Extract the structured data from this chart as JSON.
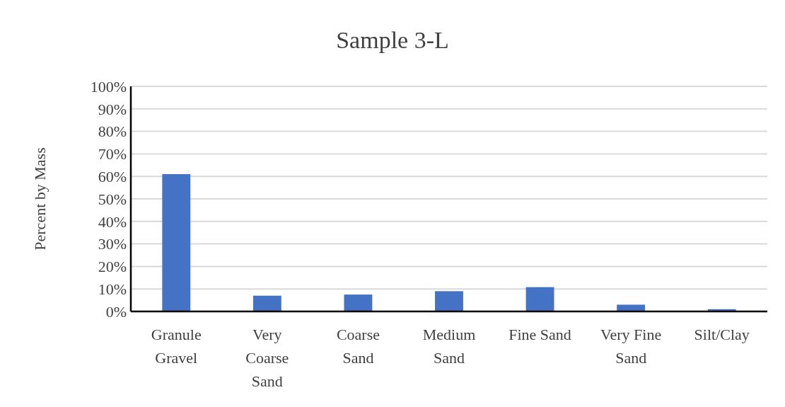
{
  "chart_data": {
    "type": "bar",
    "title": "Sample 3-L",
    "ylabel": "Percent by Mass",
    "categories": [
      "Granule Gravel",
      "Very Coarse Sand",
      "Coarse Sand",
      "Medium Sand",
      "Fine Sand",
      "Very Fine Sand",
      "Silt/Clay"
    ],
    "values": [
      61,
      7,
      7.5,
      9,
      10.8,
      3,
      1
    ],
    "color": "#4472c4",
    "ylim": [
      0,
      100
    ],
    "yticks": [
      {
        "value": 0,
        "label": "0%"
      },
      {
        "value": 10,
        "label": "10%"
      },
      {
        "value": 20,
        "label": "20%"
      },
      {
        "value": 30,
        "label": "30%"
      },
      {
        "value": 40,
        "label": "40%"
      },
      {
        "value": 50,
        "label": "50%"
      },
      {
        "value": 60,
        "label": "60%"
      },
      {
        "value": 70,
        "label": "70%"
      },
      {
        "value": 80,
        "label": "80%"
      },
      {
        "value": 90,
        "label": "90%"
      },
      {
        "value": 100,
        "label": "100%"
      }
    ],
    "grid": "y"
  }
}
